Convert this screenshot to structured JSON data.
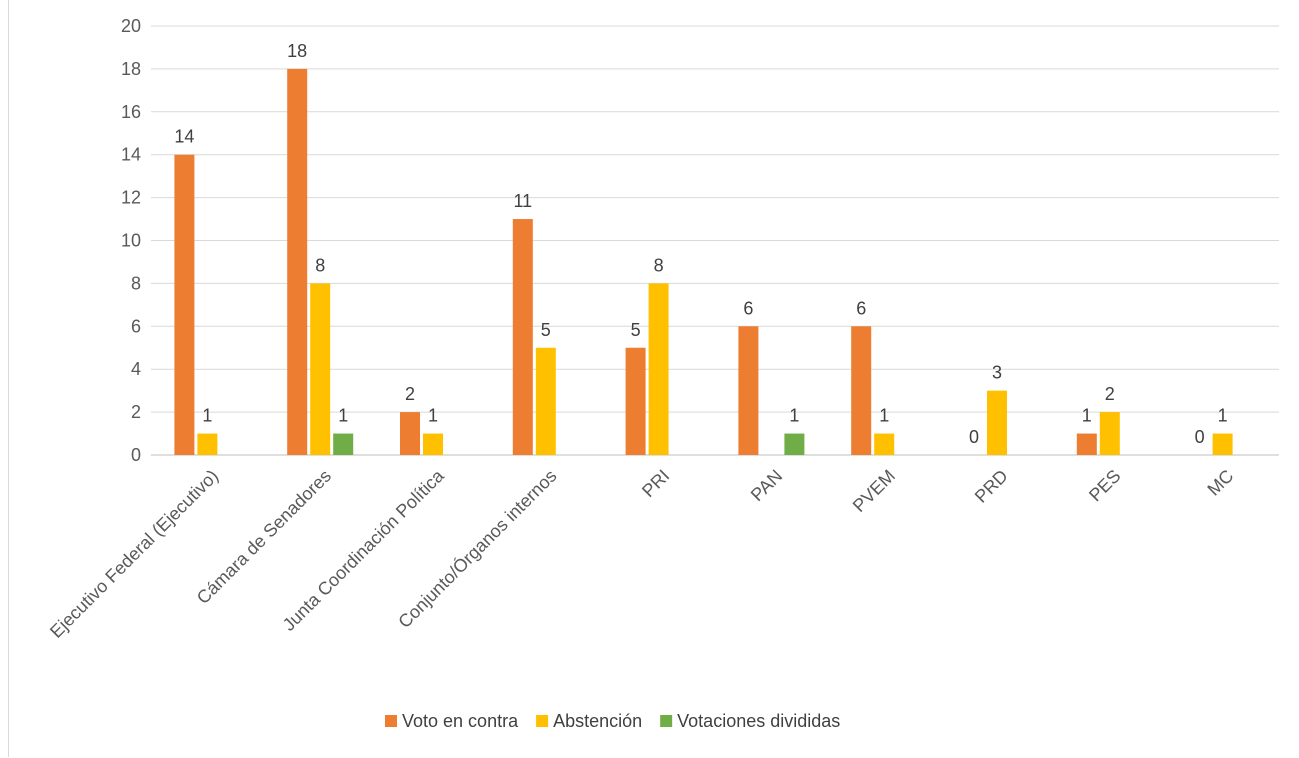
{
  "chart_data": {
    "type": "bar",
    "title": "",
    "xlabel": "",
    "ylabel": "",
    "ylim": [
      0,
      20
    ],
    "yticks": [
      "0",
      "2",
      "4",
      "6",
      "8",
      "10",
      "12",
      "14",
      "16",
      "18",
      "20"
    ],
    "grid": true,
    "legend_position": "bottom",
    "categories": [
      "Ejecutivo Federal (Ejecutivo)",
      "Cámara de Senadores",
      "Junta Coordinación Política",
      "Conjunto/Órganos internos",
      "PRI",
      "PAN",
      "PVEM",
      "PRD",
      "PES",
      "MC"
    ],
    "series": [
      {
        "name": "Voto en contra",
        "color": "#ED7D31",
        "values": [
          14,
          18,
          2,
          11,
          5,
          6,
          6,
          0,
          1,
          0
        ],
        "labels": [
          "14",
          "18",
          "2",
          "11",
          "5",
          "6",
          "6",
          "0",
          "1",
          "0"
        ]
      },
      {
        "name": "Abstención",
        "color": "#FFC000",
        "values": [
          1,
          8,
          1,
          5,
          8,
          0,
          1,
          3,
          2,
          1
        ],
        "labels": [
          "1",
          "8",
          "1",
          "5",
          "8",
          "",
          "1",
          "3",
          "2",
          "1"
        ]
      },
      {
        "name": "Votaciones divididas",
        "color": "#70AD47",
        "values": [
          0,
          1,
          0,
          0,
          0,
          1,
          0,
          0,
          0,
          0
        ],
        "labels": [
          "",
          "1",
          "",
          "",
          "",
          "1",
          "",
          "",
          "",
          ""
        ]
      }
    ]
  }
}
